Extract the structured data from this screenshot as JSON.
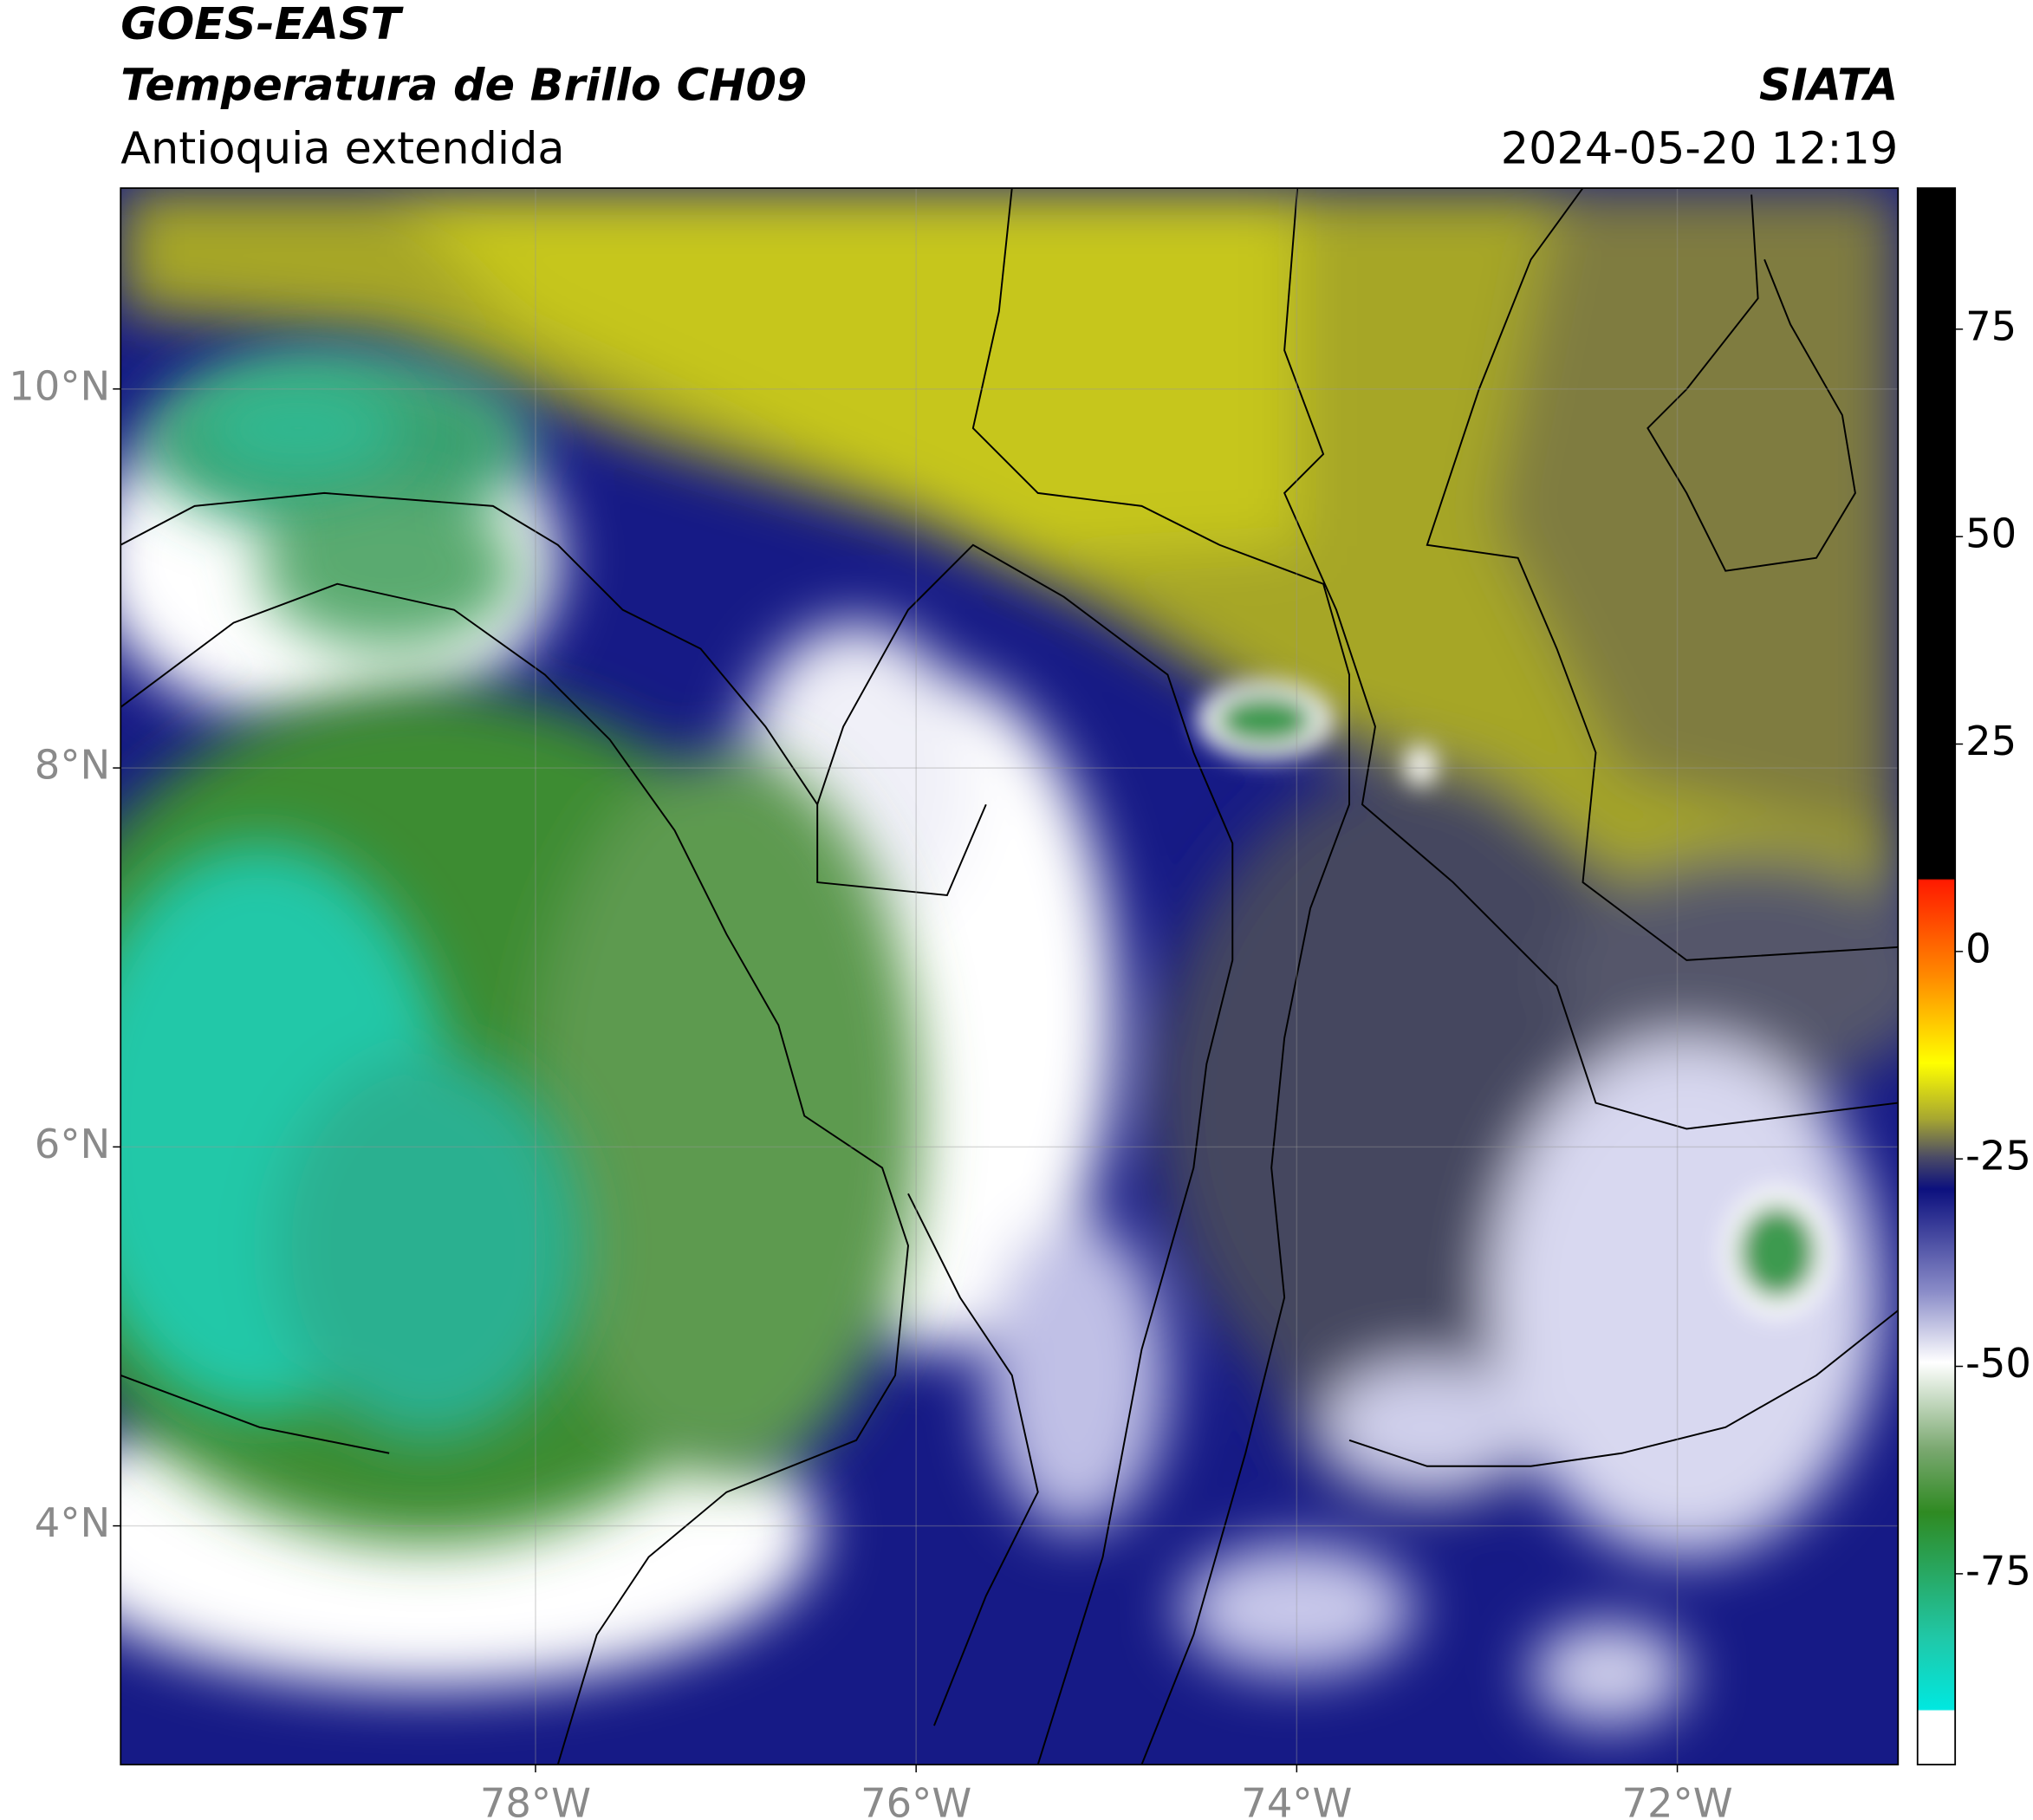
{
  "header": {
    "title": "GOES-EAST",
    "subtitle": "Temperatura de Brillo CH09",
    "region": "Antioquia extendida",
    "source": "SIATA",
    "datetime": "2024-05-20 12:19"
  },
  "map": {
    "xlim": [
      -80.18,
      -70.84
    ],
    "ylim": [
      2.74,
      11.06
    ],
    "xticks": [
      {
        "value": -78,
        "label": "78°W"
      },
      {
        "value": -76,
        "label": "76°W"
      },
      {
        "value": -74,
        "label": "74°W"
      },
      {
        "value": -72,
        "label": "72°W"
      }
    ],
    "yticks": [
      {
        "value": 4,
        "label": "4°N"
      },
      {
        "value": 6,
        "label": "6°N"
      },
      {
        "value": 8,
        "label": "8°N"
      },
      {
        "value": 10,
        "label": "10°N"
      }
    ],
    "grid": true
  },
  "colorbar": {
    "ylim": [
      -98,
      92
    ],
    "yticks": [
      75,
      50,
      25,
      0,
      -25,
      -50,
      -75
    ]
  }
}
